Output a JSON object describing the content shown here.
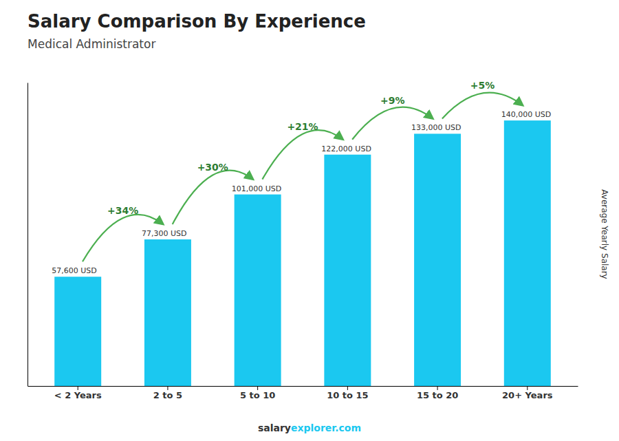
{
  "chart_data": {
    "type": "bar",
    "title": "Salary Comparison By Experience",
    "subtitle": "Medical Administrator",
    "ylabel": "Average Yearly Salary",
    "categories": [
      "< 2 Years",
      "2 to 5",
      "5 to 10",
      "10 to 15",
      "15 to 20",
      "20+ Years"
    ],
    "values": [
      57600,
      77300,
      101000,
      122000,
      133000,
      140000
    ],
    "value_labels": [
      "57,600 USD",
      "77,300 USD",
      "101,000 USD",
      "122,000 USD",
      "133,000 USD",
      "140,000 USD"
    ],
    "annotations": [
      "+34%",
      "+30%",
      "+21%",
      "+9%",
      "+5%"
    ],
    "watermark": [
      "salary",
      "explorer.com"
    ],
    "color": "#1BC8F0",
    "ylim": [
      0,
      160000
    ],
    "grid": false,
    "tick_labels": "x"
  }
}
